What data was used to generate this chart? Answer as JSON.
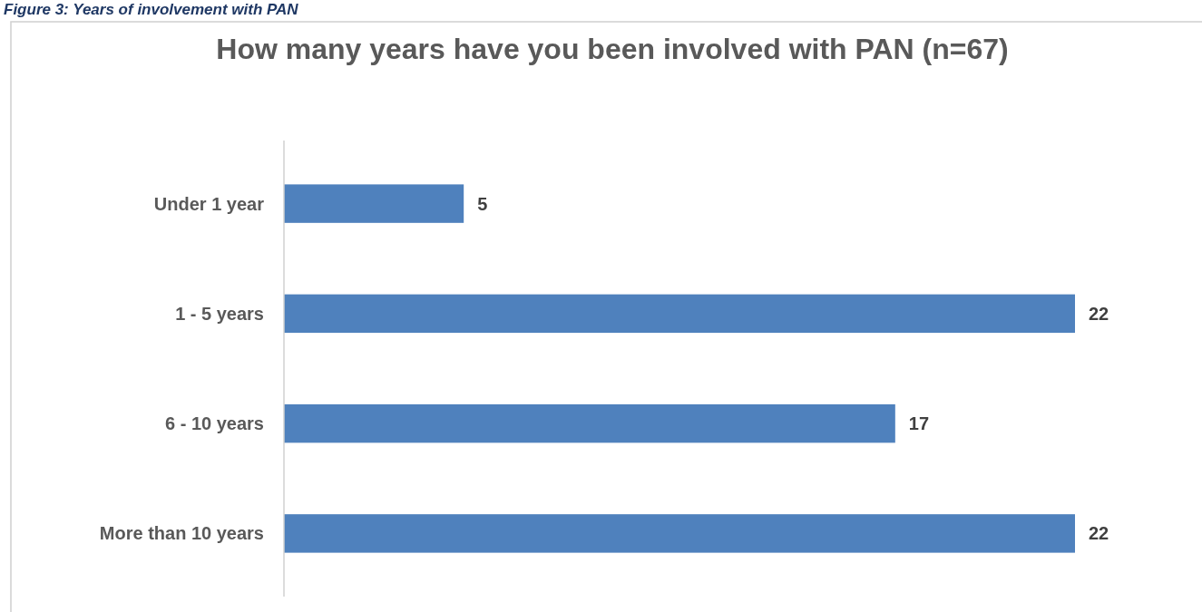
{
  "chart_data": {
    "type": "bar",
    "orientation": "horizontal",
    "title": "How many years have you been involved with PAN (n=67)",
    "annotations": [
      "Figure 3: Years of involvement with PAN"
    ],
    "categories": [
      "Under 1 year",
      "1 - 5 years",
      "6 - 10 years",
      "More than 10 years"
    ],
    "values": [
      5,
      22,
      17,
      22
    ],
    "color": "#4f81bd",
    "data_labels": true
  }
}
